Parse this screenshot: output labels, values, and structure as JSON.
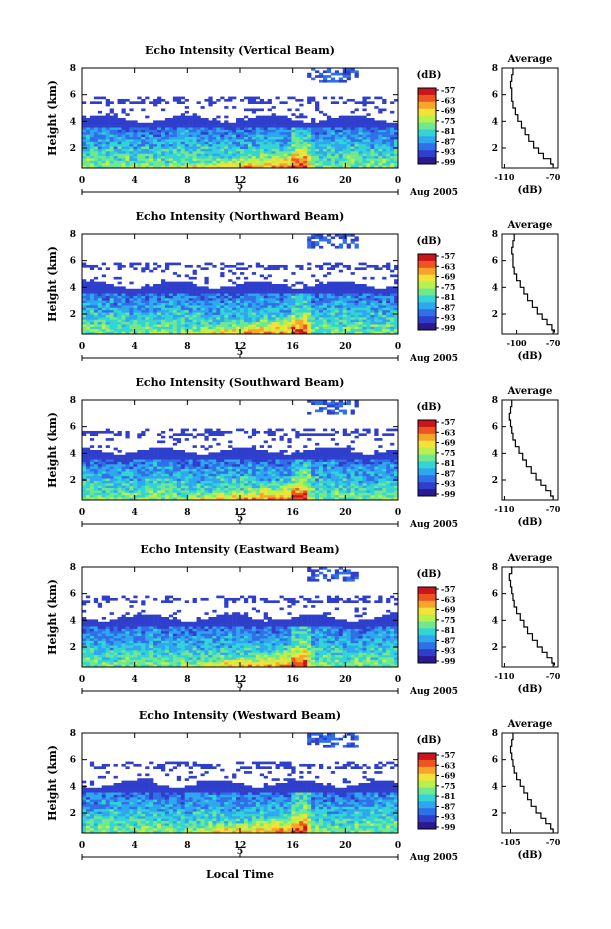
{
  "xaxis_global_label": "Local Time",
  "colorbar": {
    "unit": "(dB)",
    "ticks": [
      "-57",
      "-63",
      "-69",
      "-75",
      "-81",
      "-87",
      "-93",
      "-99"
    ],
    "colors": [
      "#2b1a8f",
      "#2f3fcc",
      "#2f6fe8",
      "#2fa6f0",
      "#33d3d6",
      "#6fe88f",
      "#b8f04e",
      "#f2e23a",
      "#f7a52a",
      "#ee5420",
      "#c9151b"
    ]
  },
  "chart_data": [
    {
      "type": "heatmap",
      "title": "Echo Intensity (Vertical Beam)",
      "ylabel": "Height (km)",
      "yticks": [
        "8",
        "6",
        "4",
        "2"
      ],
      "xticks": [
        "0",
        "4",
        "8",
        "12",
        "16",
        "20",
        "0"
      ],
      "date_tick": "5",
      "date_label": "Aug 2005",
      "ylim": [
        0.5,
        8
      ],
      "xlim": [
        0,
        24
      ],
      "colorbar_unit": "(dB)",
      "colorbar_ticks": [
        "-57",
        "-63",
        "-69",
        "-75",
        "-81",
        "-87",
        "-93",
        "-99"
      ],
      "profile": {
        "title": "Average",
        "xlabel": "(dB)",
        "xticks": [
          "-110",
          "-70"
        ],
        "xlim": [
          -112,
          -66
        ],
        "yticks": [
          "8",
          "6",
          "4",
          "2"
        ],
        "ylim": [
          0.5,
          8
        ],
        "points": [
          [
            -103,
            8
          ],
          [
            -103,
            7.5
          ],
          [
            -104,
            7
          ],
          [
            -105,
            6.5
          ],
          [
            -104,
            6
          ],
          [
            -104,
            5.5
          ],
          [
            -103,
            5
          ],
          [
            -101,
            4.5
          ],
          [
            -99,
            4
          ],
          [
            -96,
            3.5
          ],
          [
            -93,
            3
          ],
          [
            -90,
            2.5
          ],
          [
            -86,
            2
          ],
          [
            -82,
            1.6
          ],
          [
            -78,
            1.2
          ],
          [
            -72,
            0.8
          ],
          [
            -70,
            0.6
          ]
        ]
      }
    },
    {
      "type": "heatmap",
      "title": "Echo Intensity (Northward Beam)",
      "ylabel": "Height (km)",
      "yticks": [
        "8",
        "6",
        "4",
        "2"
      ],
      "xticks": [
        "0",
        "4",
        "8",
        "12",
        "16",
        "20",
        "0"
      ],
      "date_tick": "5",
      "date_label": "Aug 2005",
      "ylim": [
        0.5,
        8
      ],
      "xlim": [
        0,
        24
      ],
      "colorbar_unit": "(dB)",
      "colorbar_ticks": [
        "-57",
        "-63",
        "-69",
        "-75",
        "-81",
        "-87",
        "-93",
        "-99"
      ],
      "profile": {
        "title": "Average",
        "xlabel": "(dB)",
        "xticks": [
          "-100",
          "-70"
        ],
        "xlim": [
          -112,
          -66
        ],
        "yticks": [
          "8",
          "6",
          "4",
          "2"
        ],
        "ylim": [
          0.5,
          8
        ],
        "points": [
          [
            -102,
            8
          ],
          [
            -102,
            7.5
          ],
          [
            -103,
            7
          ],
          [
            -104,
            6.5
          ],
          [
            -103,
            6
          ],
          [
            -103,
            5.5
          ],
          [
            -102,
            5
          ],
          [
            -100,
            4.5
          ],
          [
            -97,
            4
          ],
          [
            -94,
            3.5
          ],
          [
            -91,
            3
          ],
          [
            -87,
            2.5
          ],
          [
            -83,
            2
          ],
          [
            -79,
            1.6
          ],
          [
            -75,
            1.2
          ],
          [
            -71,
            0.8
          ],
          [
            -69,
            0.6
          ]
        ]
      }
    },
    {
      "type": "heatmap",
      "title": "Echo Intensity (Southward Beam)",
      "ylabel": "Height (km)",
      "yticks": [
        "8",
        "6",
        "4",
        "2"
      ],
      "xticks": [
        "0",
        "4",
        "8",
        "12",
        "16",
        "20",
        "0"
      ],
      "date_tick": "5",
      "date_label": "Aug 2005",
      "ylim": [
        0.5,
        8
      ],
      "xlim": [
        0,
        24
      ],
      "colorbar_unit": "(dB)",
      "colorbar_ticks": [
        "-57",
        "-63",
        "-69",
        "-75",
        "-81",
        "-87",
        "-93",
        "-99"
      ],
      "profile": {
        "title": "Average",
        "xlabel": "(dB)",
        "xticks": [
          "-110",
          "-70"
        ],
        "xlim": [
          -112,
          -66
        ],
        "yticks": [
          "8",
          "6",
          "4",
          "2"
        ],
        "ylim": [
          0.5,
          8
        ],
        "points": [
          [
            -104,
            8
          ],
          [
            -104,
            7.5
          ],
          [
            -105,
            7
          ],
          [
            -106,
            6.5
          ],
          [
            -105,
            6
          ],
          [
            -104,
            5.5
          ],
          [
            -103,
            5
          ],
          [
            -101,
            4.5
          ],
          [
            -98,
            4
          ],
          [
            -95,
            3.5
          ],
          [
            -92,
            3
          ],
          [
            -88,
            2.5
          ],
          [
            -84,
            2
          ],
          [
            -80,
            1.6
          ],
          [
            -76,
            1.2
          ],
          [
            -72,
            0.8
          ],
          [
            -70,
            0.6
          ]
        ]
      }
    },
    {
      "type": "heatmap",
      "title": "Echo Intensity (Eastward Beam)",
      "ylabel": "Height (km)",
      "yticks": [
        "8",
        "6",
        "4",
        "2"
      ],
      "xticks": [
        "0",
        "4",
        "8",
        "12",
        "16",
        "20",
        "0"
      ],
      "date_tick": "5",
      "date_label": "Aug 2005",
      "ylim": [
        0.5,
        8
      ],
      "xlim": [
        0,
        24
      ],
      "colorbar_unit": "(dB)",
      "colorbar_ticks": [
        "-57",
        "-63",
        "-69",
        "-75",
        "-81",
        "-87",
        "-93",
        "-99"
      ],
      "profile": {
        "title": "Average",
        "xlabel": "(dB)",
        "xticks": [
          "-110",
          "-70"
        ],
        "xlim": [
          -112,
          -66
        ],
        "yticks": [
          "8",
          "6",
          "4",
          "2"
        ],
        "ylim": [
          0.5,
          8
        ],
        "points": [
          [
            -105,
            8
          ],
          [
            -104,
            7.5
          ],
          [
            -106,
            7
          ],
          [
            -105,
            6.5
          ],
          [
            -104,
            6
          ],
          [
            -103,
            5.5
          ],
          [
            -102,
            5
          ],
          [
            -100,
            4.5
          ],
          [
            -97,
            4
          ],
          [
            -94,
            3.5
          ],
          [
            -91,
            3
          ],
          [
            -87,
            2.5
          ],
          [
            -83,
            2
          ],
          [
            -79,
            1.6
          ],
          [
            -75,
            1.2
          ],
          [
            -71,
            0.8
          ],
          [
            -69,
            0.6
          ]
        ]
      }
    },
    {
      "type": "heatmap",
      "title": "Echo Intensity (Westward Beam)",
      "ylabel": "Height (km)",
      "yticks": [
        "8",
        "6",
        "4",
        "2"
      ],
      "xticks": [
        "0",
        "4",
        "8",
        "12",
        "16",
        "20",
        "0"
      ],
      "date_tick": "5",
      "date_label": "Aug 2005",
      "ylim": [
        0.5,
        8
      ],
      "xlim": [
        0,
        24
      ],
      "colorbar_unit": "(dB)",
      "colorbar_ticks": [
        "-57",
        "-63",
        "-69",
        "-75",
        "-81",
        "-87",
        "-93",
        "-99"
      ],
      "profile": {
        "title": "Average",
        "xlabel": "(dB)",
        "xticks": [
          "-105",
          "-70"
        ],
        "xlim": [
          -112,
          -66
        ],
        "yticks": [
          "8",
          "6",
          "4",
          "2"
        ],
        "ylim": [
          0.5,
          8
        ],
        "points": [
          [
            -103,
            8
          ],
          [
            -103,
            7.5
          ],
          [
            -104,
            7
          ],
          [
            -105,
            6.5
          ],
          [
            -104,
            6
          ],
          [
            -103,
            5.5
          ],
          [
            -102,
            5
          ],
          [
            -100,
            4.5
          ],
          [
            -97,
            4
          ],
          [
            -94,
            3.5
          ],
          [
            -91,
            3
          ],
          [
            -88,
            2.5
          ],
          [
            -84,
            2
          ],
          [
            -80,
            1.6
          ],
          [
            -76,
            1.2
          ],
          [
            -72,
            0.8
          ],
          [
            -70,
            0.6
          ]
        ]
      }
    }
  ]
}
